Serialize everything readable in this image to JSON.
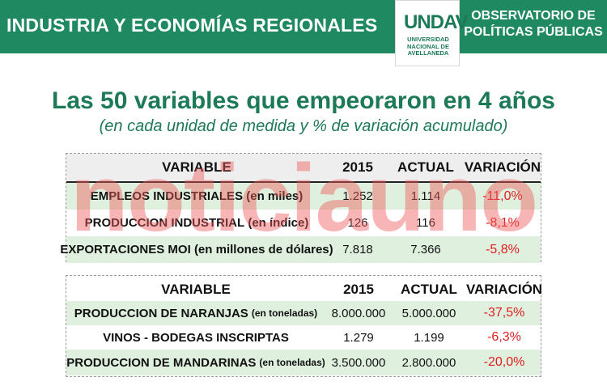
{
  "header": {
    "title": "INDUSTRIA Y ECONOMÍAS REGIONALES",
    "logo_mark": "UNDAV",
    "logo_text": "UNIVERSIDAD NACIONAL DE AVELLANEDA",
    "observatory": "OBSERVATORIO DE POLÍTICAS PÚBLICAS",
    "bar_color": "#1f8a62"
  },
  "main": {
    "title": "Las 50 variables que empeoraron en 4 años",
    "subtitle": "(en cada unidad de medida y % de variación acumulado)"
  },
  "watermark": "noticiauno",
  "table1": {
    "headers": [
      "VARIABLE",
      "2015",
      "ACTUAL",
      "VARIACIÓN"
    ],
    "rows": [
      {
        "name": "EMPLEOS INDUSTRIALES",
        "unit": "(en miles)",
        "v2015": "1.252",
        "actual": "1.114",
        "variation": "-11,0%"
      },
      {
        "name": "PRODUCCION INDUSTRIAL",
        "unit": "(en índice)",
        "v2015": "126",
        "actual": "116",
        "variation": "-8,1%"
      },
      {
        "name": "EXPORTACIONES MOI",
        "unit": "(en millones de dólares)",
        "v2015": "7.818",
        "actual": "7.366",
        "variation": "-5,8%"
      }
    ]
  },
  "table2": {
    "headers": [
      "VARIABLE",
      "2015",
      "ACTUAL",
      "VARIACIÓN"
    ],
    "rows": [
      {
        "name": "PRODUCCION DE NARANJAS",
        "unit": "(en toneladas)",
        "v2015": "8.000.000",
        "actual": "5.000.000",
        "variation": "-37,5%"
      },
      {
        "name": "VINOS - BODEGAS INSCRIPTAS",
        "unit": "",
        "v2015": "1.279",
        "actual": "1.199",
        "variation": "-6,3%"
      },
      {
        "name": "PRODUCCION DE MANDARINAS",
        "unit": "(en toneladas)",
        "v2015": "3.500.000",
        "actual": "2.800.000",
        "variation": "-20,0%"
      }
    ]
  },
  "colors": {
    "accent": "#1d7a57",
    "negative": "#e01e1e",
    "row_highlight": "#dff0df"
  }
}
